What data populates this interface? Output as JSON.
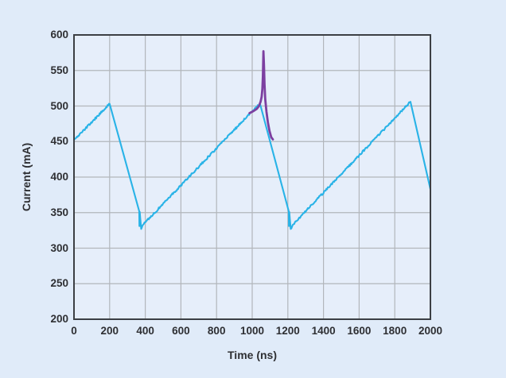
{
  "figure": {
    "background": "#e0ebf9",
    "plot_background": "#e6eefa",
    "grid_color": "#b2b6bb",
    "axis_color": "#3c3f44",
    "text_color": "#2e2f33"
  },
  "chart_data": {
    "type": "line",
    "title": "",
    "xlabel": "Time (ns)",
    "ylabel": "Current (mA)",
    "xlim": [
      0,
      2000
    ],
    "ylim": [
      200,
      600
    ],
    "xticks": [
      0,
      200,
      400,
      600,
      800,
      1000,
      1200,
      1400,
      1600,
      1800,
      2000
    ],
    "yticks": [
      200,
      250,
      300,
      350,
      400,
      450,
      500,
      550,
      600
    ],
    "grid": true,
    "legend": "none",
    "noise_amplitude_mA": 1.4,
    "series": [
      {
        "name": "inductor-current-sawtooth",
        "color": "#29b3e7",
        "width": 2.1,
        "points": [
          [
            0,
            452,
            0
          ],
          [
            200,
            503,
            1
          ],
          [
            366,
            352,
            0
          ],
          [
            367,
            331,
            0
          ],
          [
            369,
            351,
            0
          ],
          [
            377,
            327,
            0
          ],
          [
            388,
            333,
            1
          ],
          [
            1043,
            504,
            1
          ],
          [
            1205,
            352,
            0
          ],
          [
            1206,
            331,
            0
          ],
          [
            1208,
            351,
            0
          ],
          [
            1216,
            327,
            0
          ],
          [
            1228,
            333,
            1
          ],
          [
            1888,
            506,
            1
          ],
          [
            2000,
            383,
            0
          ]
        ]
      },
      {
        "name": "switching-spike",
        "color": "#7c3fa0",
        "width": 2.8,
        "points": [
          [
            985,
            490,
            0
          ],
          [
            1008,
            493,
            0
          ],
          [
            1026,
            496,
            0
          ],
          [
            1038,
            500,
            0
          ],
          [
            1047,
            506,
            0
          ],
          [
            1053,
            513,
            0
          ],
          [
            1057,
            524,
            0
          ],
          [
            1060,
            542,
            0
          ],
          [
            1063,
            577,
            0
          ],
          [
            1066,
            558,
            0
          ],
          [
            1069,
            531,
            0
          ],
          [
            1073,
            510,
            0
          ],
          [
            1080,
            492,
            0
          ],
          [
            1088,
            477,
            0
          ],
          [
            1097,
            465,
            0
          ],
          [
            1107,
            456,
            0
          ],
          [
            1116,
            453,
            0
          ]
        ]
      }
    ]
  }
}
